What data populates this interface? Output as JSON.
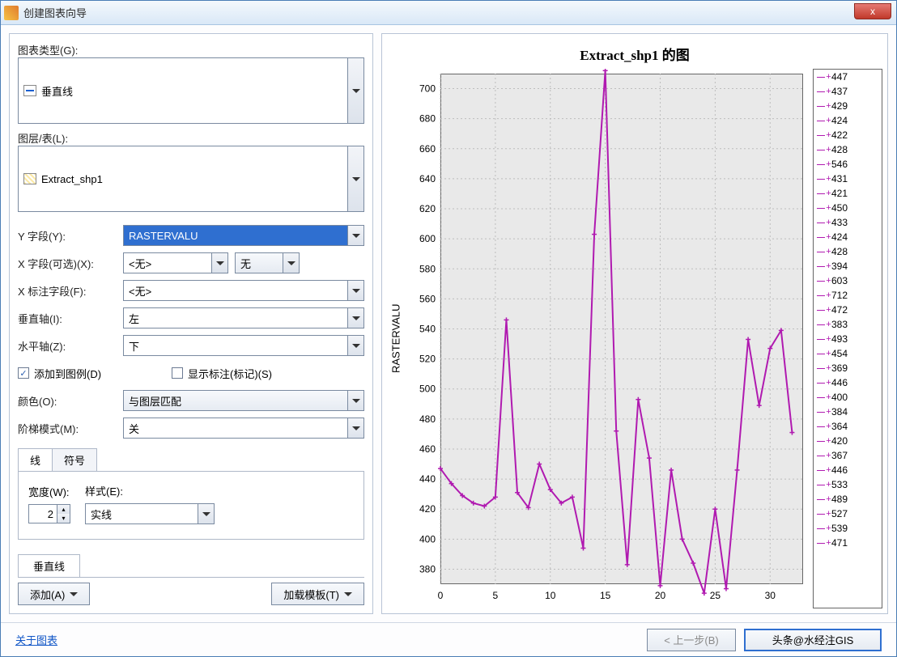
{
  "window": {
    "title": "创建图表向导",
    "close_label": "x"
  },
  "form": {
    "chart_type_label": "图表类型(G):",
    "chart_type_value": "垂直线",
    "layer_label": "图层/表(L):",
    "layer_value": "Extract_shp1",
    "y_field_label": "Y 字段(Y):",
    "y_field_value": "RASTERVALU",
    "x_field_label": "X 字段(可选)(X):",
    "x_field_value": "<无>",
    "x_field_value2": "无",
    "x_label_field_label": "X 标注字段(F):",
    "x_label_field_value": "<无>",
    "vert_axis_label": "垂直轴(I):",
    "vert_axis_value": "左",
    "horiz_axis_label": "水平轴(Z):",
    "horiz_axis_value": "下",
    "add_legend_label": "添加到图例(D)",
    "add_legend_checked": true,
    "show_labels_label": "显示标注(标记)(S)",
    "show_labels_checked": false,
    "color_label": "颜色(O):",
    "color_value": "与图层匹配",
    "step_label": "阶梯模式(M):",
    "step_value": "关",
    "tab_line": "线",
    "tab_symbol": "符号",
    "width_label": "宽度(W):",
    "width_value": "2",
    "style_label": "样式(E):",
    "style_value": "实线",
    "lower_tab": "垂直线",
    "add_btn": "添加(A)",
    "load_template_btn": "加载模板(T)"
  },
  "footer": {
    "about_link": "关于图表",
    "prev_btn": "< 上一步(B)",
    "watermark": "头条@水经注GIS"
  },
  "chart": {
    "title": "Extract_shp1 的图",
    "ylabel": "RASTERVALU",
    "type": "line",
    "line_color": "#b01ab0",
    "marker_color": "#b01ab0",
    "grid_color": "#bdbdbd",
    "plot_bg": "#e9e9e9",
    "border_color": "#666666",
    "ylim": [
      370,
      710
    ],
    "xlim": [
      0,
      33
    ],
    "y_ticks": [
      380,
      400,
      420,
      440,
      460,
      480,
      500,
      520,
      540,
      560,
      580,
      600,
      620,
      640,
      660,
      680,
      700
    ],
    "x_ticks": [
      0,
      5,
      10,
      15,
      20,
      25,
      30
    ],
    "values": [
      447,
      437,
      429,
      424,
      422,
      428,
      546,
      431,
      421,
      450,
      433,
      424,
      428,
      394,
      603,
      712,
      472,
      383,
      493,
      454,
      369,
      446,
      400,
      384,
      364,
      420,
      367,
      446,
      533,
      489,
      527,
      539,
      471
    ],
    "legend_values": [
      447,
      437,
      429,
      424,
      422,
      428,
      546,
      431,
      421,
      450,
      433,
      424,
      428,
      394,
      603,
      712,
      472,
      383,
      493,
      454,
      369,
      446,
      400,
      384,
      364,
      420,
      367,
      446,
      533,
      489,
      527,
      539,
      471
    ],
    "line_width": 2,
    "marker": "plus",
    "marker_size": 6,
    "title_fontsize": 17,
    "tick_fontsize": 12
  }
}
